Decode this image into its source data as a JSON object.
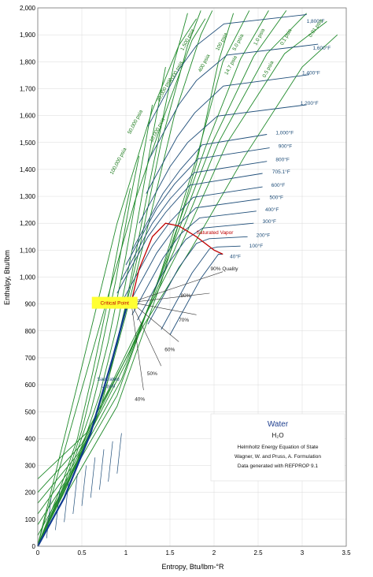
{
  "chart_data": {
    "type": "line",
    "title": "",
    "xlabel": "Entropy, Btu/lbm-°R",
    "ylabel": "Enthalpy, Btu/lbm",
    "xlim": [
      0,
      3.5
    ],
    "ylim": [
      0,
      2000
    ],
    "xticks": [
      "0",
      "0.5",
      "1",
      "1.5",
      "2",
      "2.5",
      "3",
      "3.5"
    ],
    "yticks": [
      "0",
      "100",
      "200",
      "300",
      "400",
      "500",
      "600",
      "700",
      "800",
      "900",
      "1,000",
      "1,100",
      "1,200",
      "1,300",
      "1,400",
      "1,500",
      "1,600",
      "1,700",
      "1,800",
      "1,900",
      "2,000"
    ],
    "grid": true,
    "colors": {
      "isotherm": "#1f4e79",
      "isobar": "#1f8a2a",
      "dome": "#c00000",
      "quality": "#333333",
      "highlight": "#ffff33",
      "saturated_liquid": "#0f3a8f"
    },
    "isotherms": [
      {
        "label": "1,800°F",
        "s_start": 1.8,
        "h_start": 1860,
        "s_end": 3.05,
        "h_end": 1975,
        "label_s": 3.05,
        "label_h": 1945
      },
      {
        "label": "1,600°F",
        "s_start": 1.8,
        "h_start": 1730,
        "s_end": 3.18,
        "h_end": 1865,
        "label_s": 3.12,
        "label_h": 1845
      },
      {
        "label": "1,400°F",
        "s_start": 1.78,
        "h_start": 1610,
        "s_end": 3.08,
        "h_end": 1752,
        "label_s": 3.0,
        "label_h": 1752
      },
      {
        "label": "1,200°F",
        "s_start": 1.7,
        "h_start": 1500,
        "s_end": 3.05,
        "h_end": 1640,
        "label_s": 2.98,
        "label_h": 1640
      },
      {
        "label": "1,000°F",
        "s_start": 1.62,
        "h_start": 1400,
        "s_end": 2.6,
        "h_end": 1530,
        "label_s": 2.7,
        "label_h": 1530
      },
      {
        "label": "900°F",
        "s_start": 1.55,
        "h_start": 1345,
        "s_end": 2.63,
        "h_end": 1480,
        "label_s": 2.73,
        "label_h": 1480
      },
      {
        "label": "800°F",
        "s_start": 1.5,
        "h_start": 1290,
        "s_end": 2.6,
        "h_end": 1430,
        "label_s": 2.7,
        "label_h": 1430
      },
      {
        "label": "705.1°F",
        "s_start": 1.45,
        "h_start": 1240,
        "s_end": 2.55,
        "h_end": 1385,
        "label_s": 2.66,
        "label_h": 1385
      },
      {
        "label": "600°F",
        "s_start": 1.5,
        "h_start": 1205,
        "s_end": 2.55,
        "h_end": 1335,
        "label_s": 2.65,
        "label_h": 1335
      },
      {
        "label": "500°F",
        "s_start": 1.55,
        "h_start": 1180,
        "s_end": 2.52,
        "h_end": 1290,
        "label_s": 2.63,
        "label_h": 1290
      },
      {
        "label": "400°F",
        "s_start": 1.62,
        "h_start": 1160,
        "s_end": 2.48,
        "h_end": 1245,
        "label_s": 2.58,
        "label_h": 1245
      },
      {
        "label": "300°F",
        "s_start": 1.68,
        "h_start": 1140,
        "s_end": 2.45,
        "h_end": 1200,
        "label_s": 2.55,
        "label_h": 1200
      },
      {
        "label": "200°F",
        "s_start": 1.8,
        "h_start": 1125,
        "s_end": 2.38,
        "h_end": 1150,
        "label_s": 2.48,
        "label_h": 1150
      },
      {
        "label": "100°F",
        "s_start": 1.95,
        "h_start": 1105,
        "s_end": 2.3,
        "h_end": 1115,
        "label_s": 2.4,
        "label_h": 1110
      },
      {
        "label": "40°F",
        "s_start": 2.05,
        "h_start": 1085,
        "s_end": 2.1,
        "h_end": 1085,
        "label_s": 2.18,
        "label_h": 1070
      }
    ],
    "isobars": [
      {
        "label": "0.01 psia",
        "label_s": 3.1,
        "label_h": 1890,
        "rot": -55
      },
      {
        "label": "0.1 psia",
        "label_s": 2.78,
        "label_h": 1860,
        "rot": -60
      },
      {
        "label": "1.0 psia",
        "label_s": 2.48,
        "label_h": 1860,
        "rot": -62
      },
      {
        "label": "5.0 psia",
        "label_s": 2.24,
        "label_h": 1840,
        "rot": -62
      },
      {
        "label": "100 psia",
        "label_s": 2.05,
        "label_h": 1840,
        "rot": -62
      },
      {
        "label": "14.7 psia",
        "label_s": 2.15,
        "label_h": 1750,
        "rot": -62
      },
      {
        "label": "400 psia",
        "label_s": 1.85,
        "label_h": 1760,
        "rot": -62
      },
      {
        "label": "0.5 psia",
        "label_s": 2.58,
        "label_h": 1740,
        "rot": -62
      },
      {
        "label": "1,500 psia",
        "label_s": 1.65,
        "label_h": 1840,
        "rot": -62
      },
      {
        "label": "5,000 psia",
        "label_s": 1.52,
        "label_h": 1720,
        "rot": -62
      },
      {
        "label": "20,000 psia",
        "label_s": 1.38,
        "label_h": 1650,
        "rot": -62
      },
      {
        "label": "10,000 psia",
        "label_s": 1.3,
        "label_h": 1500,
        "rot": -62
      },
      {
        "label": "50,000 psia",
        "label_s": 1.05,
        "label_h": 1530,
        "rot": -62
      },
      {
        "label": "100,000 psia",
        "label_s": 0.85,
        "label_h": 1380,
        "rot": -62
      }
    ],
    "quality_lines": [
      {
        "label": "90% Quality",
        "label_s": 1.96,
        "label_h": 1025
      },
      {
        "label": "80%",
        "label_s": 1.62,
        "label_h": 925
      },
      {
        "label": "70%",
        "label_s": 1.6,
        "label_h": 835
      },
      {
        "label": "60%",
        "label_s": 1.44,
        "label_h": 725
      },
      {
        "label": "50%",
        "label_s": 1.24,
        "label_h": 635
      },
      {
        "label": "40%",
        "label_s": 1.1,
        "label_h": 540
      }
    ],
    "annotations": [
      {
        "id": "critical-point",
        "text": "Critical Point",
        "s": 1.06,
        "h": 906
      },
      {
        "id": "saturated-vapor",
        "text": "Saturated Vapor",
        "s": 1.8,
        "h": 1160
      },
      {
        "id": "saturated-liquid-1",
        "text": "Saturated",
        "s": 0.8,
        "h": 615
      },
      {
        "id": "saturated-liquid-2",
        "text": "Liquid",
        "s": 0.8,
        "h": 590
      }
    ],
    "info_box": {
      "title": "Water",
      "formula": "H₂O",
      "lines": [
        "Helmholtz Energy Equation of State",
        "Wagner, W. and Pruss, A. Formulation",
        "Data generated with REFPROP 9.1"
      ]
    }
  }
}
